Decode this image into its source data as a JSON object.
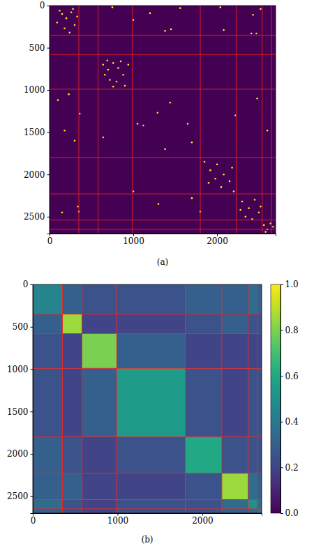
{
  "chart_data": [
    {
      "type": "scatter",
      "title": "(a)",
      "xlim": [
        0,
        2700
      ],
      "ylim": [
        2700,
        0
      ],
      "xticks": [
        0,
        1000,
        2000
      ],
      "yticks": [
        0,
        500,
        1000,
        1500,
        2000,
        2500
      ],
      "edges": [
        0,
        350,
        580,
        990,
        1800,
        2230,
        2540,
        2650,
        2700
      ],
      "points": [
        [
          120,
          60
        ],
        [
          200,
          150
        ],
        [
          260,
          80
        ],
        [
          300,
          230
        ],
        [
          180,
          270
        ],
        [
          90,
          200
        ],
        [
          330,
          130
        ],
        [
          240,
          320
        ],
        [
          150,
          100
        ],
        [
          280,
          40
        ],
        [
          750,
          20
        ],
        [
          1200,
          90
        ],
        [
          1560,
          30
        ],
        [
          2040,
          20
        ],
        [
          2430,
          110
        ],
        [
          2520,
          40
        ],
        [
          1450,
          280
        ],
        [
          2080,
          290
        ],
        [
          2410,
          330
        ],
        [
          2470,
          330
        ],
        [
          1000,
          170
        ],
        [
          1380,
          300
        ],
        [
          640,
          700
        ],
        [
          700,
          760
        ],
        [
          760,
          680
        ],
        [
          820,
          740
        ],
        [
          880,
          820
        ],
        [
          720,
          880
        ],
        [
          800,
          900
        ],
        [
          900,
          950
        ],
        [
          660,
          820
        ],
        [
          940,
          700
        ],
        [
          850,
          660
        ],
        [
          760,
          960
        ],
        [
          690,
          650
        ],
        [
          230,
          1050
        ],
        [
          360,
          1280
        ],
        [
          180,
          1480
        ],
        [
          300,
          1600
        ],
        [
          100,
          1120
        ],
        [
          1290,
          1270
        ],
        [
          1440,
          1150
        ],
        [
          1120,
          1420
        ],
        [
          1650,
          1400
        ],
        [
          1700,
          1620
        ],
        [
          1380,
          1700
        ],
        [
          2220,
          1300
        ],
        [
          2480,
          1100
        ],
        [
          2600,
          1480
        ],
        [
          1050,
          1400
        ],
        [
          640,
          1560
        ],
        [
          1850,
          1850
        ],
        [
          1920,
          1950
        ],
        [
          2000,
          1880
        ],
        [
          2080,
          2000
        ],
        [
          2150,
          2080
        ],
        [
          1900,
          2100
        ],
        [
          2050,
          2150
        ],
        [
          2180,
          1920
        ],
        [
          1980,
          2050
        ],
        [
          340,
          2380
        ],
        [
          350,
          2440
        ],
        [
          1000,
          2200
        ],
        [
          1300,
          2350
        ],
        [
          1700,
          2280
        ],
        [
          1800,
          2440
        ],
        [
          150,
          2450
        ],
        [
          2200,
          2200
        ],
        [
          2300,
          2320
        ],
        [
          2380,
          2400
        ],
        [
          2450,
          2300
        ],
        [
          2500,
          2450
        ],
        [
          2340,
          2500
        ],
        [
          2420,
          2530
        ],
        [
          2520,
          2380
        ],
        [
          2280,
          2420
        ],
        [
          2560,
          2600
        ],
        [
          2600,
          2650
        ],
        [
          2640,
          2580
        ],
        [
          2580,
          2680
        ],
        [
          2670,
          2620
        ]
      ]
    },
    {
      "type": "heatmap",
      "title": "(b)",
      "color": "viridis",
      "xlim": [
        0,
        2700
      ],
      "ylim": [
        2700,
        0
      ],
      "xticks": [
        0,
        1000,
        2000
      ],
      "yticks": [
        0,
        500,
        1000,
        1500,
        2000,
        2500
      ],
      "edges": [
        0,
        350,
        580,
        990,
        1800,
        2230,
        2540,
        2650,
        2700
      ],
      "cells": [
        [
          0.45,
          0.3,
          0.25,
          0.25,
          0.3,
          0.3,
          0.35,
          0.3
        ],
        [
          0.3,
          0.85,
          0.2,
          0.2,
          0.25,
          0.3,
          0.25,
          0.25
        ],
        [
          0.25,
          0.2,
          0.8,
          0.3,
          0.2,
          0.2,
          0.2,
          0.2
        ],
        [
          0.25,
          0.2,
          0.3,
          0.55,
          0.25,
          0.2,
          0.25,
          0.25
        ],
        [
          0.3,
          0.25,
          0.2,
          0.25,
          0.6,
          0.25,
          0.25,
          0.25
        ],
        [
          0.3,
          0.3,
          0.2,
          0.2,
          0.25,
          0.85,
          0.35,
          0.3
        ],
        [
          0.35,
          0.25,
          0.2,
          0.25,
          0.25,
          0.35,
          0.5,
          0.35
        ],
        [
          0.3,
          0.25,
          0.2,
          0.25,
          0.25,
          0.3,
          0.35,
          0.4
        ]
      ],
      "colorbar": {
        "range": [
          0,
          1
        ],
        "ticks": [
          {
            "value": 0,
            "label": "0.0"
          },
          {
            "value": 0.2,
            "label": "0.2"
          },
          {
            "value": 0.4,
            "label": "0.4"
          },
          {
            "value": 0.6,
            "label": "0.6"
          },
          {
            "value": 0.8,
            "label": "0.8"
          },
          {
            "value": 1,
            "label": "1.0"
          }
        ]
      }
    }
  ]
}
